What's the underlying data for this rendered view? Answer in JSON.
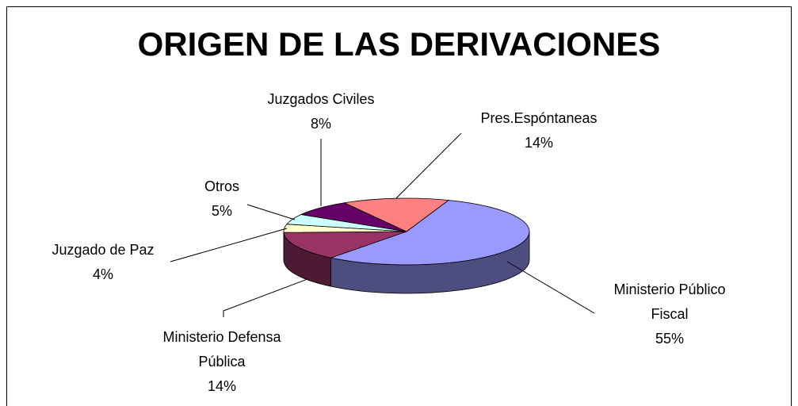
{
  "chart_data": {
    "type": "pie",
    "title": "ORIGEN DE LAS DERIVACIONES",
    "categories": [
      "Ministerio Público Fiscal",
      "Ministerio Defensa Pública",
      "Juzgado de Paz",
      "Otros",
      "Juzgados Civiles",
      "Pres.Espóntaneas"
    ],
    "values": [
      55,
      14,
      4,
      5,
      8,
      14
    ],
    "value_labels": [
      "55%",
      "14%",
      "4%",
      "5%",
      "8%",
      "14%"
    ],
    "colors": [
      "#9999ff",
      "#993366",
      "#ffffcc",
      "#ccffff",
      "#660066",
      "#ff8080"
    ]
  }
}
